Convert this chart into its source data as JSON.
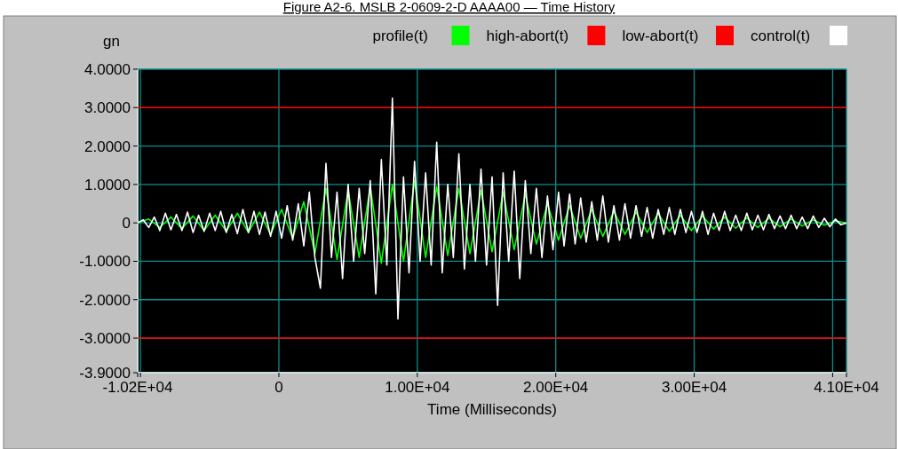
{
  "chart_data": {
    "type": "line",
    "title": "Figure A2-6.  MSLB 2-0609-2-D AAAA00 — Time History",
    "xlabel": "Time (Milliseconds)",
    "ylabel": "gn",
    "xlim": [
      -10200,
      41000
    ],
    "ylim": [
      -3.9,
      4
    ],
    "xticks": [
      {
        "value": -10200,
        "label": "-1.02E+04"
      },
      {
        "value": -10000,
        "label": null
      },
      0,
      {
        "value": 10000,
        "label": "1.00E+04"
      },
      {
        "value": 20000,
        "label": "2.00E+04"
      },
      {
        "value": 30000,
        "label": "3.00E+04"
      },
      {
        "value": 40000,
        "label": null
      },
      {
        "value": 41000,
        "label": "4.10E+04"
      }
    ],
    "yticks": [
      {
        "value": -3.9,
        "label": "-3.9000"
      },
      {
        "value": -3,
        "label": "-3.0000"
      },
      {
        "value": -2,
        "label": "-2.0000"
      },
      {
        "value": -1,
        "label": "-1.0000"
      },
      0,
      {
        "value": 1,
        "label": "1.0000"
      },
      {
        "value": 2,
        "label": "2.0000"
      },
      {
        "value": 3,
        "label": "3.0000"
      },
      {
        "value": 4,
        "label": "4.0000"
      }
    ],
    "grid": true,
    "legend": "top",
    "marker": "none",
    "line_style": "solid",
    "series": [
      {
        "name": "profile(t)",
        "color": "#00ff00",
        "x": [
          -10200,
          -9400,
          -8600,
          -7800,
          -7000,
          -6200,
          -5400,
          -4600,
          -3800,
          -3000,
          -2200,
          -1400,
          -600,
          200,
          1000,
          1800,
          2600,
          3400,
          4200,
          5000,
          5800,
          6600,
          7400,
          8200,
          9000,
          9800,
          10600,
          11400,
          12200,
          13000,
          13800,
          14600,
          15400,
          16200,
          17000,
          17800,
          18600,
          19400,
          20200,
          21000,
          21800,
          22600,
          23400,
          24200,
          25000,
          25800,
          26600,
          27400,
          28200,
          29000,
          29800,
          30600,
          31400,
          32200,
          33000,
          33800,
          34600,
          35400,
          36200,
          37000,
          37800,
          38600,
          39400,
          40200,
          41000
        ],
        "values": [
          0,
          0.1,
          -0.12,
          0.15,
          -0.15,
          0.18,
          -0.2,
          0.2,
          -0.22,
          0.25,
          -0.25,
          0.28,
          -0.3,
          0.35,
          -0.4,
          0.55,
          -0.8,
          0.9,
          -0.95,
          0.85,
          -0.9,
          0.95,
          -1.05,
          1.0,
          -1.0,
          1.1,
          -0.9,
          0.95,
          -0.85,
          0.9,
          -0.8,
          0.85,
          -0.75,
          0.8,
          -0.7,
          0.75,
          -0.55,
          0.5,
          -0.45,
          0.45,
          -0.4,
          0.35,
          -0.35,
          0.3,
          -0.3,
          0.28,
          -0.25,
          0.25,
          -0.22,
          0.2,
          -0.2,
          0.18,
          -0.16,
          0.15,
          -0.14,
          0.13,
          -0.12,
          0.12,
          -0.1,
          0.1,
          -0.08,
          0.08,
          -0.06,
          0.05,
          0
        ]
      },
      {
        "name": "high-abort(t)",
        "color": "#ff0000",
        "x": [
          -10200,
          41000
        ],
        "values": [
          3,
          3
        ]
      },
      {
        "name": "low-abort(t)",
        "color": "#ff0000",
        "x": [
          -10200,
          41000
        ],
        "values": [
          -3,
          -3
        ]
      },
      {
        "name": "control(t)",
        "color": "#ffffff",
        "x": [
          -10200,
          -9800,
          -9400,
          -9000,
          -8600,
          -8200,
          -7800,
          -7400,
          -7000,
          -6600,
          -6200,
          -5800,
          -5400,
          -5000,
          -4600,
          -4200,
          -3800,
          -3400,
          -3000,
          -2600,
          -2200,
          -1800,
          -1400,
          -1000,
          -600,
          -200,
          200,
          600,
          1000,
          1400,
          1800,
          2200,
          2600,
          3000,
          3400,
          3800,
          4200,
          4600,
          5000,
          5400,
          5800,
          6200,
          6600,
          7000,
          7400,
          7800,
          8200,
          8600,
          9000,
          9400,
          9800,
          10200,
          10600,
          11000,
          11400,
          11800,
          12200,
          12600,
          13000,
          13400,
          13800,
          14200,
          14600,
          15000,
          15400,
          15800,
          16200,
          16600,
          17000,
          17400,
          17800,
          18200,
          18600,
          19000,
          19400,
          19800,
          20200,
          20600,
          21000,
          21400,
          21800,
          22200,
          22600,
          23000,
          23400,
          23800,
          24200,
          24600,
          25000,
          25400,
          25800,
          26200,
          26600,
          27000,
          27400,
          27800,
          28200,
          28600,
          29000,
          29400,
          29800,
          30200,
          30600,
          31000,
          31400,
          31800,
          32200,
          32600,
          33000,
          33400,
          33800,
          34200,
          34600,
          35000,
          35400,
          35800,
          36200,
          36600,
          37000,
          37400,
          37800,
          38200,
          38600,
          39000,
          39400,
          39800,
          40200,
          40600,
          41000
        ],
        "values": [
          0,
          0.08,
          -0.12,
          0.15,
          -0.2,
          0.25,
          -0.18,
          0.22,
          -0.2,
          0.28,
          -0.25,
          0.2,
          -0.22,
          0.25,
          -0.2,
          0.3,
          -0.25,
          0.22,
          -0.28,
          0.35,
          -0.25,
          0.3,
          -0.3,
          0.28,
          -0.35,
          0.3,
          -0.4,
          0.45,
          -0.45,
          0.5,
          -0.6,
          0.8,
          -0.9,
          -1.7,
          1.55,
          -0.9,
          0.8,
          -1.45,
          1.0,
          -1.0,
          0.9,
          -0.8,
          1.1,
          -1.85,
          1.65,
          -1.1,
          3.25,
          -2.5,
          1.2,
          -1.3,
          1.6,
          -1.0,
          1.3,
          -1.1,
          2.1,
          -1.3,
          1.0,
          -0.9,
          1.8,
          -1.2,
          1.0,
          -1.0,
          1.4,
          -1.1,
          1.2,
          -2.15,
          1.3,
          -1.0,
          1.35,
          -1.45,
          1.1,
          -0.8,
          0.9,
          -0.9,
          0.7,
          -0.7,
          0.8,
          -0.6,
          0.75,
          -0.55,
          0.65,
          -0.5,
          0.55,
          -0.45,
          0.7,
          -0.5,
          0.45,
          -0.45,
          0.5,
          -0.4,
          0.45,
          -0.35,
          0.4,
          -0.4,
          0.35,
          -0.3,
          0.4,
          -0.3,
          0.35,
          -0.25,
          0.3,
          -0.25,
          0.3,
          -0.3,
          0.25,
          -0.2,
          0.3,
          -0.2,
          0.2,
          -0.2,
          0.25,
          -0.18,
          0.2,
          -0.18,
          0.22,
          -0.15,
          0.18,
          -0.15,
          0.2,
          -0.15,
          0.15,
          -0.15,
          0.18,
          -0.12,
          0.12,
          -0.1,
          0.1,
          -0.05,
          0
        ]
      }
    ]
  }
}
